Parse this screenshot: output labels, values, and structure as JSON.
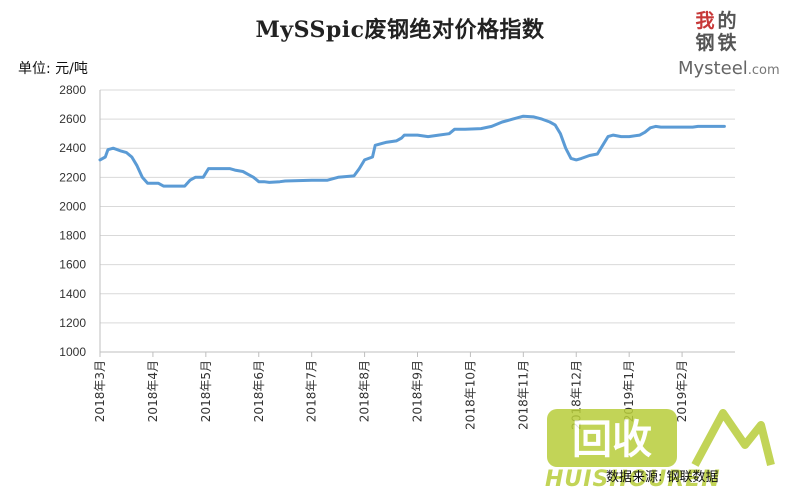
{
  "chart_data": {
    "type": "line",
    "title": "MySSpic废钢绝对价格指数",
    "unit_label": "单位: 元/吨",
    "source": "数据来源: 钢联数据",
    "logo": {
      "chars": [
        "我",
        "的",
        "钢",
        "铁"
      ],
      "text": "Mysteel",
      "domain": ".com"
    },
    "watermark": {
      "icon_text": "回收",
      "text": "HUISHOUREN"
    },
    "ylim": [
      1000,
      2800
    ],
    "yticks": [
      1000,
      1200,
      1400,
      1600,
      1800,
      2000,
      2200,
      2400,
      2600,
      2800
    ],
    "xlim": [
      0,
      12
    ],
    "xticks": [
      {
        "x": 0,
        "label": "2018年3月"
      },
      {
        "x": 1,
        "label": "2018年4月"
      },
      {
        "x": 2,
        "label": "2018年5月"
      },
      {
        "x": 3,
        "label": "2018年6月"
      },
      {
        "x": 4,
        "label": "2018年7月"
      },
      {
        "x": 5,
        "label": "2018年8月"
      },
      {
        "x": 6,
        "label": "2018年9月"
      },
      {
        "x": 7,
        "label": "2018年10月"
      },
      {
        "x": 8,
        "label": "2018年11月"
      },
      {
        "x": 9,
        "label": "2018年12月"
      },
      {
        "x": 10,
        "label": "2019年1月"
      },
      {
        "x": 11,
        "label": "2019年2月"
      }
    ],
    "grid": true,
    "line_color": "#5b9bd5",
    "series": [
      {
        "points": [
          [
            0,
            2320
          ],
          [
            0.1,
            2340
          ],
          [
            0.15,
            2390
          ],
          [
            0.25,
            2400
          ],
          [
            0.4,
            2380
          ],
          [
            0.5,
            2370
          ],
          [
            0.6,
            2340
          ],
          [
            0.7,
            2280
          ],
          [
            0.8,
            2200
          ],
          [
            0.9,
            2160
          ],
          [
            1.0,
            2160
          ],
          [
            1.1,
            2160
          ],
          [
            1.2,
            2140
          ],
          [
            1.4,
            2140
          ],
          [
            1.6,
            2140
          ],
          [
            1.7,
            2180
          ],
          [
            1.8,
            2200
          ],
          [
            1.95,
            2200
          ],
          [
            2.05,
            2260
          ],
          [
            2.2,
            2260
          ],
          [
            2.45,
            2260
          ],
          [
            2.55,
            2250
          ],
          [
            2.7,
            2240
          ],
          [
            2.8,
            2220
          ],
          [
            2.9,
            2200
          ],
          [
            3.0,
            2170
          ],
          [
            3.1,
            2170
          ],
          [
            3.2,
            2165
          ],
          [
            3.4,
            2170
          ],
          [
            3.5,
            2175
          ],
          [
            4.0,
            2180
          ],
          [
            4.3,
            2180
          ],
          [
            4.5,
            2200
          ],
          [
            4.8,
            2210
          ],
          [
            4.9,
            2260
          ],
          [
            5.0,
            2320
          ],
          [
            5.15,
            2340
          ],
          [
            5.2,
            2420
          ],
          [
            5.4,
            2440
          ],
          [
            5.6,
            2450
          ],
          [
            5.7,
            2470
          ],
          [
            5.75,
            2490
          ],
          [
            5.95,
            2490
          ],
          [
            6.0,
            2490
          ],
          [
            6.2,
            2480
          ],
          [
            6.4,
            2490
          ],
          [
            6.6,
            2500
          ],
          [
            6.7,
            2530
          ],
          [
            6.9,
            2530
          ],
          [
            7.2,
            2535
          ],
          [
            7.4,
            2550
          ],
          [
            7.6,
            2580
          ],
          [
            7.8,
            2600
          ],
          [
            8.0,
            2620
          ],
          [
            8.2,
            2615
          ],
          [
            8.35,
            2600
          ],
          [
            8.5,
            2580
          ],
          [
            8.6,
            2560
          ],
          [
            8.7,
            2500
          ],
          [
            8.8,
            2400
          ],
          [
            8.9,
            2330
          ],
          [
            9.0,
            2320
          ],
          [
            9.1,
            2330
          ],
          [
            9.25,
            2350
          ],
          [
            9.4,
            2360
          ],
          [
            9.5,
            2420
          ],
          [
            9.6,
            2480
          ],
          [
            9.7,
            2490
          ],
          [
            9.85,
            2480
          ],
          [
            10.0,
            2480
          ],
          [
            10.2,
            2490
          ],
          [
            10.3,
            2510
          ],
          [
            10.4,
            2540
          ],
          [
            10.5,
            2550
          ],
          [
            10.6,
            2545
          ],
          [
            11.0,
            2545
          ],
          [
            11.2,
            2545
          ],
          [
            11.3,
            2550
          ],
          [
            11.5,
            2550
          ],
          [
            11.8,
            2550
          ]
        ]
      }
    ]
  }
}
